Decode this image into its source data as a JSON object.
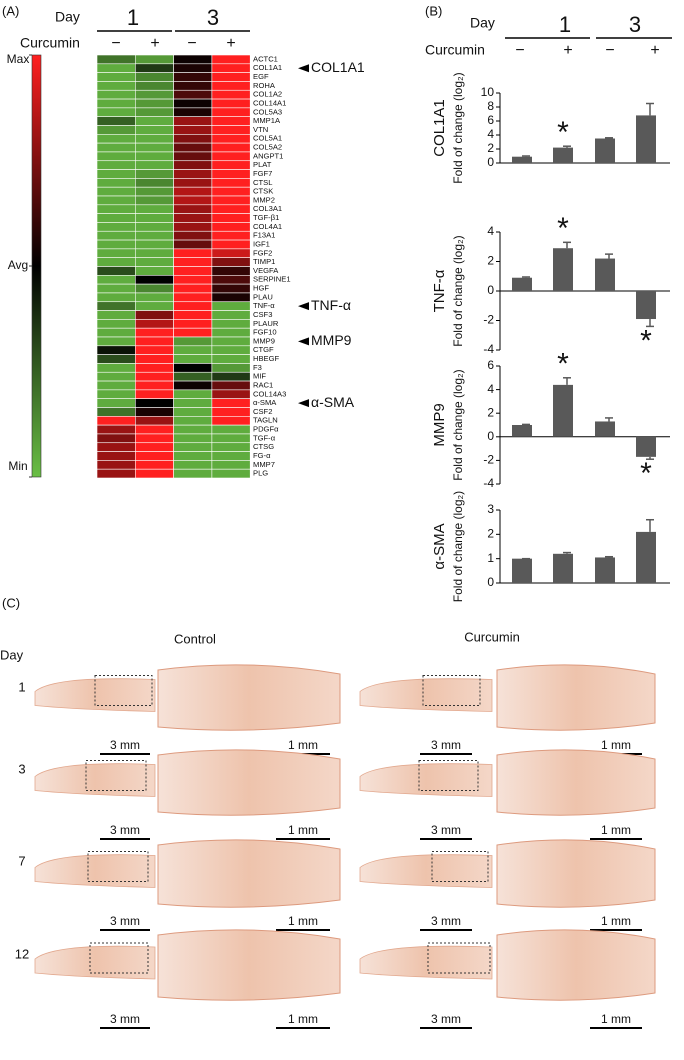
{
  "panel_a": {
    "label": "(A)",
    "day_label": "Day",
    "days": [
      "1",
      "3"
    ],
    "treatment_label": "Curcumin",
    "treatments": [
      "−",
      "+",
      "−",
      "+"
    ],
    "callouts": [
      "COL1A1",
      "TNF-α",
      "MMP9",
      "α-SMA"
    ]
  },
  "panel_b": {
    "label": "(B)",
    "day_label": "Day",
    "days": [
      "1",
      "3"
    ],
    "treatment_label": "Curcumin",
    "treatments": [
      "−",
      "+",
      "−",
      "+"
    ]
  },
  "chart_data": [
    {
      "type": "heatmap",
      "rows": [
        "ACTC1",
        "COL1A1",
        "EGF",
        "ROHA",
        "COL1A2",
        "COL14A1",
        "COL5A3",
        "MMP1A",
        "VTN",
        "COL5A1",
        "COL5A2",
        "ANGPT1",
        "PLAT",
        "FGF7",
        "CTSL",
        "CTSK",
        "MMP2",
        "COL3A1",
        "TGF-β1",
        "COL4A1",
        "F13A1",
        "IGF1",
        "FGF2",
        "TIMP1",
        "VEGFA",
        "SERPINE1",
        "HGF",
        "PLAU",
        "TNF-α",
        "CSF3",
        "PLAUR",
        "FGF10",
        "MMP9",
        "CTGF",
        "HBEGF",
        "F3",
        "MIF",
        "RAC1",
        "COL14A3",
        "α-SMA",
        "CSF2",
        "TAGLN",
        "PDGFα",
        "TGF-α",
        "CTSG",
        "FG-α",
        "MMP7",
        "PLG"
      ],
      "values": [
        [
          -0.6,
          -0.8,
          0.05,
          1
        ],
        [
          -0.9,
          -0.3,
          0.1,
          1
        ],
        [
          -0.9,
          -0.7,
          0.2,
          1
        ],
        [
          -0.9,
          -0.7,
          0.2,
          1
        ],
        [
          -0.9,
          -0.8,
          0.3,
          1
        ],
        [
          -0.9,
          -0.8,
          0.05,
          1
        ],
        [
          -0.9,
          -0.8,
          0.1,
          1
        ],
        [
          -0.5,
          -0.9,
          0.6,
          1
        ],
        [
          -0.8,
          -0.9,
          0.6,
          1
        ],
        [
          -0.9,
          -0.9,
          0.5,
          1
        ],
        [
          -0.9,
          -0.9,
          0.4,
          1
        ],
        [
          -0.9,
          -0.9,
          0.4,
          1
        ],
        [
          -0.9,
          -0.9,
          0.5,
          1
        ],
        [
          -0.9,
          -0.8,
          0.6,
          1
        ],
        [
          -0.9,
          -0.7,
          0.6,
          1
        ],
        [
          -0.9,
          -0.8,
          0.7,
          1
        ],
        [
          -0.9,
          -0.8,
          0.7,
          1
        ],
        [
          -0.9,
          -0.9,
          0.6,
          1
        ],
        [
          -0.9,
          -0.9,
          0.6,
          1
        ],
        [
          -0.9,
          -0.9,
          0.6,
          1
        ],
        [
          -0.9,
          -0.9,
          0.5,
          1
        ],
        [
          -0.9,
          -0.9,
          0.4,
          1
        ],
        [
          -0.9,
          -0.9,
          1,
          0.8
        ],
        [
          -0.9,
          -0.9,
          1,
          0.5
        ],
        [
          -0.4,
          -0.9,
          1,
          0.2
        ],
        [
          -0.9,
          0,
          1,
          0.3
        ],
        [
          -0.9,
          -0.7,
          1,
          0.2
        ],
        [
          -0.9,
          -0.9,
          1,
          0.1
        ],
        [
          -0.6,
          -0.9,
          1,
          -0.9
        ],
        [
          -0.9,
          0.5,
          1,
          -0.9
        ],
        [
          -0.9,
          0.7,
          1,
          -0.9
        ],
        [
          -0.9,
          1,
          1,
          -0.9
        ],
        [
          -0.9,
          1,
          -0.8,
          -0.9
        ],
        [
          -0.1,
          1,
          -0.9,
          -0.9
        ],
        [
          -0.4,
          1,
          -0.9,
          -0.9
        ],
        [
          -0.9,
          1,
          0,
          -0.8
        ],
        [
          -0.9,
          1,
          -0.5,
          -0.3
        ],
        [
          -0.9,
          1,
          0.05,
          0.4
        ],
        [
          -0.9,
          1,
          -0.9,
          0.6
        ],
        [
          -0.9,
          0,
          -0.9,
          1
        ],
        [
          -0.6,
          0.1,
          -0.9,
          1
        ],
        [
          1,
          0.6,
          -0.9,
          1
        ],
        [
          0.6,
          1,
          -0.9,
          -0.9
        ],
        [
          0.5,
          1,
          -0.9,
          -0.9
        ],
        [
          0.6,
          1,
          -0.9,
          -0.9
        ],
        [
          0.6,
          1,
          -0.9,
          -0.9
        ],
        [
          0.6,
          1,
          -0.9,
          -0.9
        ],
        [
          0.6,
          1,
          -0.9,
          -0.9
        ]
      ],
      "zlim": [
        -1,
        1
      ],
      "colors": {
        "low": "#6abf45",
        "mid": "#000000",
        "high": "#ff2020"
      },
      "colorbar_ticks": [
        {
          "value": 1,
          "label": "Max"
        },
        {
          "value": 0,
          "label": "Avg"
        },
        {
          "value": -1,
          "label": "Min"
        }
      ]
    },
    {
      "type": "bar",
      "ylabel": "COL1A1",
      "ylabel2": "Fold of change (log₂)",
      "values": [
        0.9,
        2.2,
        3.5,
        6.8
      ],
      "errors": [
        0.1,
        0.2,
        0.1,
        1.7
      ],
      "markers": [
        null,
        "*",
        null,
        null
      ],
      "ylim": [
        0,
        10
      ],
      "yticks": [
        0,
        2,
        4,
        6,
        8,
        10
      ],
      "color": "#595959"
    },
    {
      "type": "bar",
      "ylabel": "TNF-α",
      "ylabel2": "Fold of change (log₂)",
      "values": [
        0.9,
        2.9,
        2.2,
        -1.9
      ],
      "errors": [
        0.05,
        0.4,
        0.3,
        0.5
      ],
      "markers": [
        null,
        "*",
        null,
        "*"
      ],
      "ylim": [
        -4,
        4
      ],
      "yticks": [
        -4,
        -2,
        0,
        2,
        4
      ],
      "color": "#595959"
    },
    {
      "type": "bar",
      "ylabel": "MMP9",
      "ylabel2": "Fold of change (log₂)",
      "values": [
        1.0,
        4.4,
        1.3,
        -1.7
      ],
      "errors": [
        0.05,
        0.6,
        0.3,
        0.2
      ],
      "markers": [
        null,
        "*",
        null,
        "*"
      ],
      "ylim": [
        -4,
        6
      ],
      "yticks": [
        -4,
        -2,
        0,
        2,
        4,
        6
      ],
      "color": "#595959"
    },
    {
      "type": "bar",
      "ylabel": "α-SMA",
      "ylabel2": "Fold of change (log₂)",
      "values": [
        1.0,
        1.2,
        1.05,
        2.1
      ],
      "errors": [
        0,
        0.05,
        0.03,
        0.5
      ],
      "markers": [
        null,
        null,
        null,
        null
      ],
      "ylim": [
        0,
        3
      ],
      "yticks": [
        0,
        1,
        2,
        3
      ],
      "color": "#595959"
    }
  ],
  "panel_c": {
    "label": "(C)",
    "columns": [
      "Control",
      "Curcumin"
    ],
    "day_label": "Day",
    "days": [
      "1",
      "3",
      "7",
      "12"
    ],
    "scale_overview": "3 mm",
    "scale_detail": "1 mm"
  }
}
